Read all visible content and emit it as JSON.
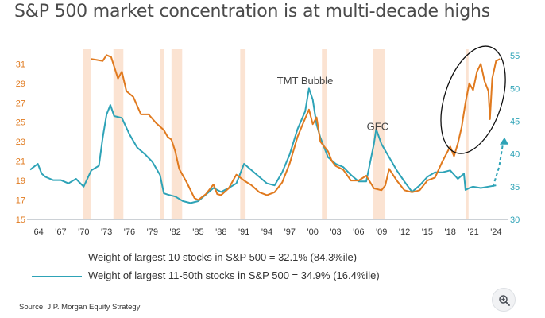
{
  "title": "S&P 500 market concentration is at multi-decade highs",
  "source": "Source: J.P. Morgan Equity Strategy",
  "zoom_icon": "zoom-in-icon",
  "chart_data": {
    "type": "line",
    "title": "S&P 500 market concentration is at multi-decade highs",
    "colors": {
      "top10": "#e07a1f",
      "top11_50": "#2ea3b7",
      "recession": "#fbe3d2",
      "axis": "#9aa3ad"
    },
    "x_ticks": [
      "'64",
      "'67",
      "'70",
      "'73",
      "'76",
      "'79",
      "'82",
      "'85",
      "'88",
      "'91",
      "'94",
      "'97",
      "'00",
      "'03",
      "'06",
      "'09",
      "'12",
      "'15",
      "'18",
      "'21",
      "'24"
    ],
    "xlim": [
      1963,
      2025
    ],
    "y_left": {
      "ticks": [
        15,
        17,
        19,
        21,
        23,
        25,
        27,
        29,
        31
      ],
      "lim": [
        15,
        32.5
      ]
    },
    "y_right": {
      "ticks": [
        30,
        35,
        40,
        45,
        50,
        55
      ],
      "lim": [
        30,
        56
      ]
    },
    "recession_bands": [
      [
        1969.9,
        1970.9
      ],
      [
        1973.9,
        1975.2
      ],
      [
        1980.0,
        1980.5
      ],
      [
        1981.5,
        1982.9
      ],
      [
        1990.5,
        1991.2
      ],
      [
        2001.2,
        2001.9
      ],
      [
        2007.9,
        2009.5
      ],
      [
        2020.1,
        2020.4
      ]
    ],
    "annotations": [
      {
        "text": "TMT Bubble",
        "x": 1999.0,
        "y": 28.9
      },
      {
        "text": "GFC",
        "x": 2008.5,
        "y": 24.2
      }
    ],
    "series": [
      {
        "name": "Weight of largest 10 stocks in S&P 500 = 32.1% (84.3%ile)",
        "axis": "left",
        "x": [
          1971.0,
          1971.8,
          1972.5,
          1973.0,
          1973.6,
          1974.5,
          1975.0,
          1975.6,
          1976.5,
          1977.5,
          1978.5,
          1979.5,
          1980.5,
          1981.0,
          1981.5,
          1982.0,
          1982.5,
          1983.0,
          1983.5,
          1984.0,
          1984.5,
          1985.0,
          1986.0,
          1987.0,
          1987.5,
          1988.0,
          1989.0,
          1990.0,
          1991.0,
          1992.0,
          1993.0,
          1994.0,
          1995.0,
          1996.0,
          1997.0,
          1998.0,
          1998.8,
          1999.5,
          2000.0,
          2000.5,
          2001.0,
          2002.0,
          2002.5,
          2003.0,
          2004.0,
          2005.0,
          2006.0,
          2007.0,
          2008.0,
          2009.0,
          2009.5,
          2010.0,
          2011.0,
          2012.0,
          2013.0,
          2014.0,
          2015.0,
          2016.0,
          2017.0,
          2018.0,
          2018.5,
          2019.0,
          2019.5,
          2020.0,
          2020.5,
          2021.0,
          2021.5,
          2022.0,
          2022.5,
          2023.0,
          2023.2,
          2023.5,
          2024.0,
          2024.5
        ],
        "values": [
          31.5,
          31.4,
          31.3,
          31.9,
          31.7,
          29.5,
          30.2,
          28.2,
          27.6,
          25.8,
          25.8,
          24.9,
          24.2,
          23.5,
          23.2,
          22.0,
          20.2,
          19.5,
          18.8,
          18.0,
          17.2,
          17.0,
          17.6,
          18.6,
          17.6,
          17.5,
          18.2,
          19.6,
          19.0,
          18.5,
          17.8,
          17.5,
          17.8,
          18.8,
          20.8,
          23.5,
          25.0,
          26.3,
          24.8,
          25.5,
          23.0,
          22.0,
          21.0,
          20.5,
          20.1,
          19.0,
          19.0,
          19.5,
          18.2,
          18.0,
          18.5,
          20.2,
          19.0,
          18.0,
          17.8,
          18.0,
          19.0,
          19.3,
          21.0,
          22.5,
          21.5,
          22.8,
          24.5,
          27.0,
          29.0,
          28.3,
          30.2,
          31.0,
          29.2,
          28.2,
          25.3,
          29.5,
          31.3,
          31.5
        ]
      },
      {
        "name": "Weight of largest 11-50th stocks in S&P 500 = 34.9% (16.4%ile)",
        "axis": "right",
        "x": [
          1963.0,
          1964.0,
          1964.5,
          1965.0,
          1966.0,
          1967.0,
          1968.0,
          1969.0,
          1970.0,
          1971.0,
          1972.0,
          1972.5,
          1973.0,
          1973.5,
          1974.0,
          1975.0,
          1976.0,
          1977.0,
          1978.0,
          1979.0,
          1980.0,
          1980.5,
          1981.0,
          1982.0,
          1983.0,
          1984.0,
          1985.0,
          1986.0,
          1987.0,
          1988.0,
          1989.0,
          1990.0,
          1991.0,
          1992.0,
          1993.0,
          1994.0,
          1995.0,
          1996.0,
          1997.0,
          1998.0,
          1999.0,
          1999.5,
          2000.0,
          2000.5,
          2001.0,
          2002.0,
          2003.0,
          2004.0,
          2005.0,
          2006.0,
          2007.0,
          2008.0,
          2008.3,
          2009.0,
          2010.0,
          2011.0,
          2012.0,
          2013.0,
          2014.0,
          2015.0,
          2016.0,
          2017.0,
          2018.0,
          2019.0,
          2019.8,
          2020.0,
          2020.5,
          2021.0,
          2022.0,
          2023.0,
          2024.0
        ],
        "values": [
          37.6,
          38.5,
          37.0,
          36.5,
          36.0,
          36.0,
          35.5,
          36.2,
          35.0,
          37.5,
          38.2,
          42.5,
          46.0,
          47.5,
          45.8,
          45.5,
          43.0,
          41.0,
          40.0,
          38.8,
          36.8,
          34.0,
          33.8,
          33.5,
          32.8,
          32.5,
          32.8,
          33.8,
          34.8,
          34.2,
          34.8,
          35.5,
          38.5,
          37.5,
          36.5,
          35.5,
          35.2,
          37.2,
          40.0,
          43.8,
          46.5,
          50.0,
          48.3,
          44.5,
          42.5,
          39.5,
          38.5,
          38.0,
          36.8,
          35.8,
          35.8,
          41.5,
          43.8,
          41.5,
          39.5,
          37.5,
          35.8,
          34.2,
          35.2,
          36.5,
          37.2,
          37.2,
          37.5,
          36.2,
          37.0,
          34.5,
          34.8,
          35.0,
          34.8,
          35.0,
          35.2
        ]
      }
    ],
    "projection": {
      "x": [
        2023.6,
        2024.4,
        2025.0
      ],
      "y_right": [
        35.0,
        38.0,
        42.3
      ]
    }
  },
  "legend": [
    {
      "label": "Weight of largest 10 stocks in S&P 500 = 32.1% (84.3%ile)"
    },
    {
      "label": "Weight of largest 11-50th stocks in S&P 500 = 34.9% (16.4%ile)"
    }
  ]
}
